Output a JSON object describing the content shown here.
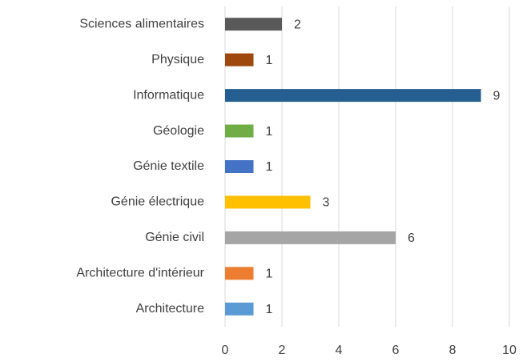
{
  "chart_data": {
    "type": "hbar",
    "categories": [
      "Sciences alimentaires",
      "Physique",
      "Informatique",
      "Géologie",
      "Génie textile",
      "Génie électrique",
      "Génie civil",
      "Architecture d'intérieur",
      "Architecture"
    ],
    "values": [
      2,
      1,
      9,
      1,
      1,
      3,
      6,
      1,
      1
    ],
    "colors": [
      "#595959",
      "#9e480e",
      "#255e91",
      "#70ad47",
      "#4472c4",
      "#ffc000",
      "#a5a5a5",
      "#ed7d31",
      "#5b9bd5"
    ],
    "xlim": [
      0,
      10
    ],
    "xticks": [
      0,
      2,
      4,
      6,
      8,
      10
    ],
    "grid": true
  }
}
